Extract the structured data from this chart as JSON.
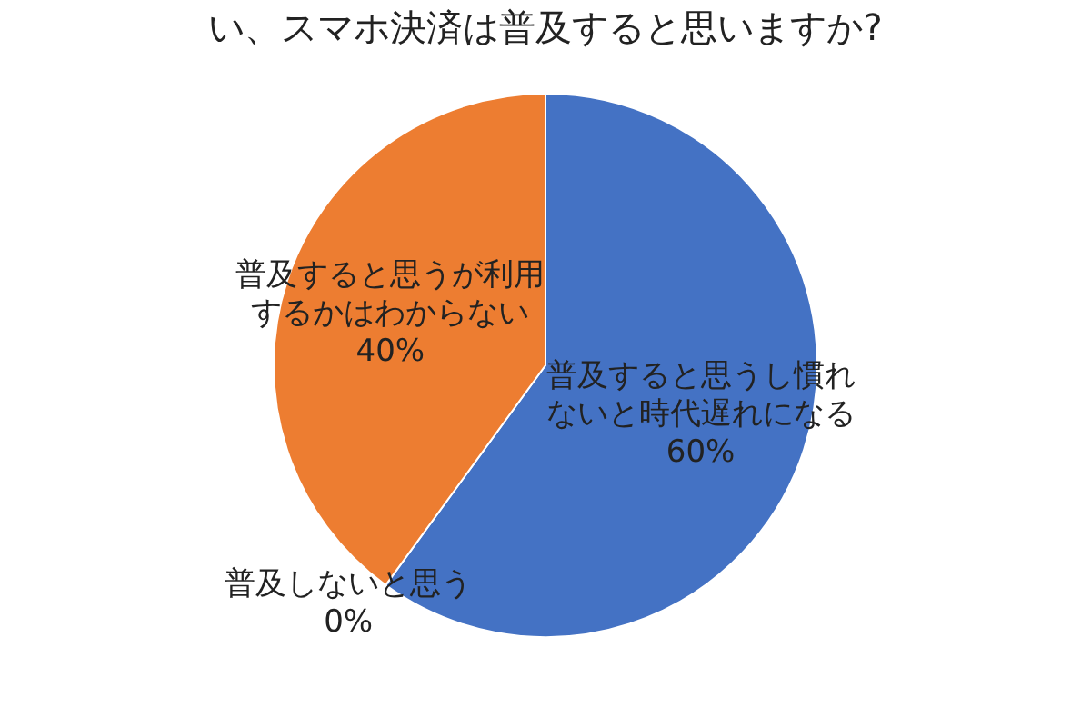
{
  "chart_data": {
    "type": "pie",
    "title": "い、スマホ決済は普及すると思いますか?",
    "categories": [
      "普及すると思うし慣れないと時代遅れになる",
      "普及しないと思う",
      "普及すると思うが利用するかはわからない"
    ],
    "values": [
      60,
      0,
      40
    ],
    "colors": [
      "#4472c4",
      "#a5a5a5",
      "#ed7d31"
    ],
    "value_labels": [
      "60%",
      "0%",
      "40%"
    ],
    "legend": false
  }
}
